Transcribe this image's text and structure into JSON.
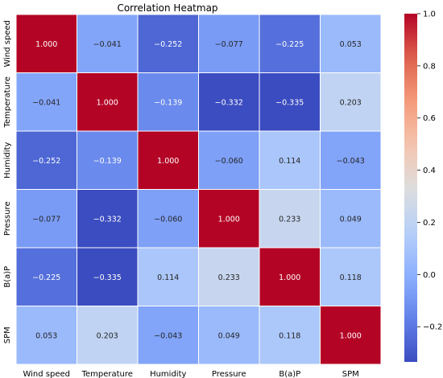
{
  "chart_data": {
    "type": "heatmap",
    "title": "Correlation Heatmap",
    "variables": [
      "Wind speed",
      "Temperature",
      "Humidity",
      "Pressure",
      "B(a)P",
      "SPM"
    ],
    "values": [
      [
        1.0,
        -0.041,
        -0.252,
        -0.077,
        -0.225,
        0.053
      ],
      [
        -0.041,
        1.0,
        -0.139,
        -0.332,
        -0.335,
        0.203
      ],
      [
        -0.252,
        -0.139,
        1.0,
        -0.06,
        0.114,
        -0.043
      ],
      [
        -0.077,
        -0.332,
        -0.06,
        1.0,
        0.233,
        0.049
      ],
      [
        -0.225,
        -0.335,
        0.114,
        0.233,
        1.0,
        0.118
      ],
      [
        0.053,
        0.203,
        -0.043,
        0.049,
        0.118,
        1.0
      ]
    ],
    "value_labels": [
      [
        "1.000",
        "−0.041",
        "−0.252",
        "−0.077",
        "−0.225",
        "0.053"
      ],
      [
        "−0.041",
        "1.000",
        "−0.139",
        "−0.332",
        "−0.335",
        "0.203"
      ],
      [
        "−0.252",
        "−0.139",
        "1.000",
        "−0.060",
        "0.114",
        "−0.043"
      ],
      [
        "−0.077",
        "−0.332",
        "−0.060",
        "1.000",
        "0.233",
        "0.049"
      ],
      [
        "−0.225",
        "−0.335",
        "0.114",
        "0.233",
        "1.000",
        "0.118"
      ],
      [
        "0.053",
        "0.203",
        "−0.043",
        "0.049",
        "0.118",
        "1.000"
      ]
    ],
    "colormap": "coolwarm",
    "color_range": [
      -0.335,
      1.0
    ],
    "colorbar_ticks": [
      {
        "value": 1.0,
        "label": "1.0"
      },
      {
        "value": 0.8,
        "label": "0.8"
      },
      {
        "value": 0.6,
        "label": "0.6"
      },
      {
        "value": 0.4,
        "label": "0.4"
      },
      {
        "value": 0.2,
        "label": "0.2"
      },
      {
        "value": 0.0,
        "label": "0.0"
      },
      {
        "value": -0.2,
        "label": "−0.2"
      }
    ]
  }
}
